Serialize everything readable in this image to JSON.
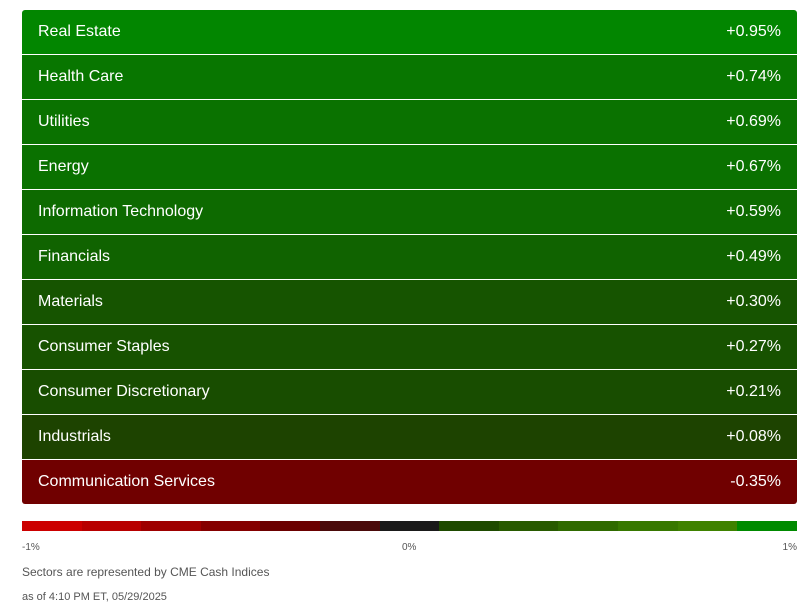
{
  "chart_data": {
    "type": "table",
    "rows": [
      {
        "sector": "Real Estate",
        "label": "+0.95%",
        "value": 0.95
      },
      {
        "sector": "Health Care",
        "label": "+0.74%",
        "value": 0.74
      },
      {
        "sector": "Utilities",
        "label": "+0.69%",
        "value": 0.69
      },
      {
        "sector": "Energy",
        "label": "+0.67%",
        "value": 0.67
      },
      {
        "sector": "Information Technology",
        "label": "+0.59%",
        "value": 0.59
      },
      {
        "sector": "Financials",
        "label": "+0.49%",
        "value": 0.49
      },
      {
        "sector": "Materials",
        "label": "+0.30%",
        "value": 0.3
      },
      {
        "sector": "Consumer Staples",
        "label": "+0.27%",
        "value": 0.27
      },
      {
        "sector": "Consumer Discretionary",
        "label": "+0.21%",
        "value": 0.21
      },
      {
        "sector": "Industrials",
        "label": "+0.08%",
        "value": 0.08
      },
      {
        "sector": "Communication Services",
        "label": "-0.35%",
        "value": -0.35
      }
    ],
    "scale": {
      "min_label": "-1%",
      "mid_label": "0%",
      "max_label": "1%",
      "min": -1,
      "max": 1,
      "colors": [
        "#cc0000",
        "#b80000",
        "#9e0000",
        "#850000",
        "#6b0000",
        "#4a0a0a",
        "#1a1a1a",
        "#1e4a00",
        "#285a00",
        "#2f6a00",
        "#377800",
        "#3f8200",
        "#008a00"
      ]
    }
  },
  "footer": {
    "note": "Sectors are represented by CME Cash Indices",
    "as_of": "as of 4:10 PM ET, 05/29/2025"
  }
}
